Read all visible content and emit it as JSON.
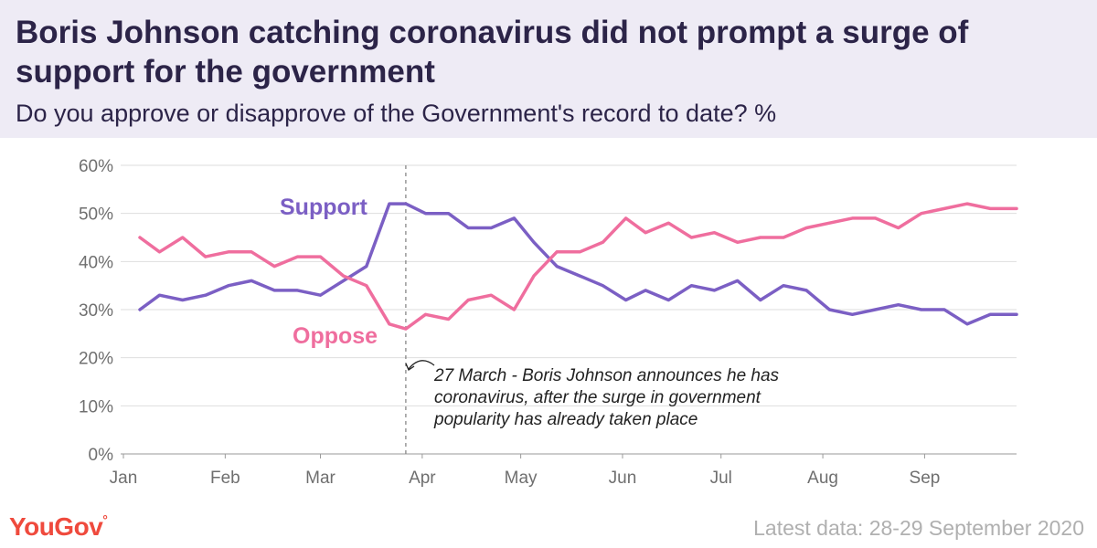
{
  "header": {
    "title": "Boris Johnson catching coronavirus did not prompt a surge of support for the government",
    "subtitle": "Do you approve or disapprove of the Government's record to date? %"
  },
  "chart_data": {
    "type": "line",
    "title": "Boris Johnson catching coronavirus did not prompt a surge of support for the government",
    "subtitle": "Do you approve or disapprove of the Government's record to date? %",
    "ylim": [
      0,
      60
    ],
    "y_ticks": [
      "0%",
      "10%",
      "20%",
      "30%",
      "40%",
      "50%",
      "60%"
    ],
    "y_tick_values": [
      0,
      10,
      20,
      30,
      40,
      50,
      60
    ],
    "x_start": "2020-01-01",
    "x_end": "2020-09-29",
    "x_ticks": [
      {
        "label": "Jan",
        "date": "2020-01-01"
      },
      {
        "label": "Feb",
        "date": "2020-02-01"
      },
      {
        "label": "Mar",
        "date": "2020-03-01"
      },
      {
        "label": "Apr",
        "date": "2020-04-01"
      },
      {
        "label": "May",
        "date": "2020-05-01"
      },
      {
        "label": "Jun",
        "date": "2020-06-01"
      },
      {
        "label": "Jul",
        "date": "2020-07-01"
      },
      {
        "label": "Aug",
        "date": "2020-08-01"
      },
      {
        "label": "Sep",
        "date": "2020-09-01"
      }
    ],
    "grid": true,
    "x": [
      "2020-01-06",
      "2020-01-12",
      "2020-01-19",
      "2020-01-26",
      "2020-02-02",
      "2020-02-09",
      "2020-02-16",
      "2020-02-23",
      "2020-03-01",
      "2020-03-08",
      "2020-03-15",
      "2020-03-22",
      "2020-03-27",
      "2020-04-02",
      "2020-04-09",
      "2020-04-15",
      "2020-04-22",
      "2020-04-29",
      "2020-05-05",
      "2020-05-12",
      "2020-05-19",
      "2020-05-26",
      "2020-06-02",
      "2020-06-08",
      "2020-06-15",
      "2020-06-22",
      "2020-06-29",
      "2020-07-06",
      "2020-07-13",
      "2020-07-20",
      "2020-07-27",
      "2020-08-03",
      "2020-08-10",
      "2020-08-17",
      "2020-08-24",
      "2020-08-31",
      "2020-09-07",
      "2020-09-14",
      "2020-09-21",
      "2020-09-29"
    ],
    "series": [
      {
        "name": "Support",
        "color": "#7b5fc4",
        "values": [
          30,
          33,
          32,
          33,
          35,
          36,
          34,
          34,
          33,
          36,
          39,
          52,
          52,
          50,
          50,
          47,
          47,
          49,
          44,
          39,
          37,
          35,
          32,
          34,
          32,
          35,
          34,
          36,
          32,
          35,
          34,
          30,
          29,
          30,
          31,
          30,
          30,
          27,
          29,
          29
        ]
      },
      {
        "name": "Oppose",
        "color": "#ef6e9e",
        "values": [
          45,
          42,
          45,
          41,
          42,
          42,
          39,
          41,
          41,
          37,
          35,
          27,
          26,
          29,
          28,
          32,
          33,
          30,
          37,
          42,
          42,
          44,
          49,
          46,
          48,
          45,
          46,
          44,
          45,
          45,
          47,
          48,
          49,
          49,
          47,
          50,
          51,
          52,
          51,
          51
        ]
      }
    ],
    "vertical_marker_date": "2020-03-27",
    "annotation": {
      "lines": [
        "27 March - Boris Johnson announces he has",
        "coronavirus, after the surge in government",
        "popularity has already taken place"
      ]
    }
  },
  "footer": {
    "brand": "YouGov",
    "latest_data": "Latest data: 28-29 September 2020"
  },
  "colors": {
    "header_bg": "#eeebf5",
    "title": "#2c2448",
    "support": "#7b5fc4",
    "oppose": "#ef6e9e",
    "brand": "#ef4a3d"
  }
}
